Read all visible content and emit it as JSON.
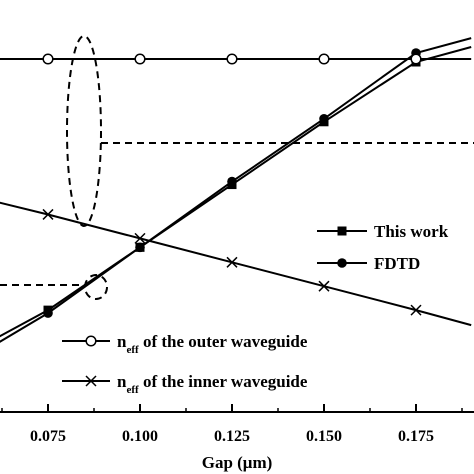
{
  "chart_data": {
    "type": "line",
    "xlabel": "Gap (μm)",
    "xlim": [
      0.055,
      0.19
    ],
    "ylim": [
      0,
      1
    ],
    "x_ticks": [
      "0.075",
      "0.100",
      "0.125",
      "0.150",
      "0.175"
    ],
    "series": [
      {
        "name": "This work",
        "marker": "square",
        "x": [
          0.06,
          0.075,
          0.1,
          0.125,
          0.15,
          0.175,
          0.19
        ],
        "y": [
          0.02,
          0.12,
          0.33,
          0.54,
          0.75,
          0.95,
          1.0
        ]
      },
      {
        "name": "FDTD",
        "marker": "circle",
        "x": [
          0.06,
          0.075,
          0.1,
          0.125,
          0.15,
          0.175,
          0.19
        ],
        "y": [
          0.0,
          0.11,
          0.33,
          0.55,
          0.76,
          0.98,
          1.03
        ]
      },
      {
        "name": "n_eff of the outer waveguide",
        "legend_main": "n",
        "legend_sub": "eff",
        "legend_rest": " of the outer waveguide",
        "marker": "open-circle",
        "x": [
          0.055,
          0.075,
          0.1,
          0.125,
          0.15,
          0.175,
          0.19
        ],
        "y": [
          0.96,
          0.96,
          0.96,
          0.96,
          0.96,
          0.96,
          0.96
        ]
      },
      {
        "name": "n_eff of the inner waveguide",
        "legend_main": "n",
        "legend_sub": "eff",
        "legend_rest": " of the inner waveguide",
        "marker": "cross",
        "x": [
          0.055,
          0.075,
          0.1,
          0.125,
          0.15,
          0.175,
          0.19
        ],
        "y": [
          0.5,
          0.44,
          0.36,
          0.28,
          0.2,
          0.12,
          0.07
        ]
      }
    ],
    "legend": {
      "upper_right": [
        "This work",
        "FDTD"
      ],
      "bottom_left": [
        "n_eff of the outer waveguide",
        "n_eff of the inner waveguide"
      ]
    },
    "grid": false
  }
}
